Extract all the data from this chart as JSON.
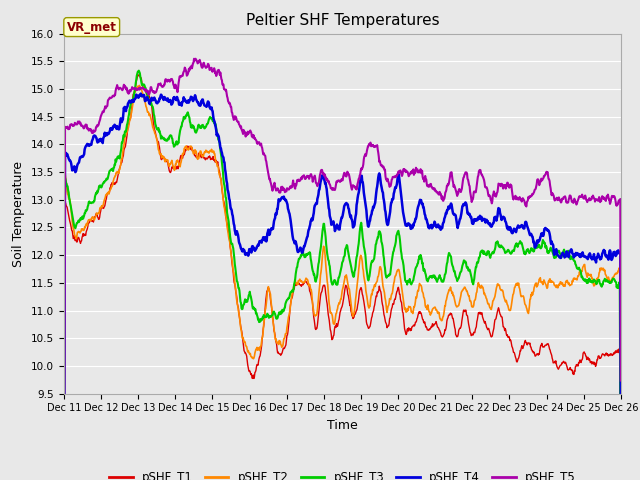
{
  "title": "Peltier SHF Temperatures",
  "xlabel": "Time",
  "ylabel": "Soil Temperature",
  "annotation": "VR_met",
  "ylim": [
    9.5,
    16.0
  ],
  "yticks": [
    9.5,
    10.0,
    10.5,
    11.0,
    11.5,
    12.0,
    12.5,
    13.0,
    13.5,
    14.0,
    14.5,
    15.0,
    15.5,
    16.0
  ],
  "xtick_labels": [
    "Dec 11",
    "Dec 12",
    "Dec 13",
    "Dec 14",
    "Dec 15",
    "Dec 16",
    "Dec 17",
    "Dec 18",
    "Dec 19",
    "Dec 20",
    "Dec 21",
    "Dec 22",
    "Dec 23",
    "Dec 24",
    "Dec 25",
    "Dec 26"
  ],
  "series_colors": {
    "pSHF_T1": "#dd0000",
    "pSHF_T2": "#ff8800",
    "pSHF_T3": "#00cc00",
    "pSHF_T4": "#0000dd",
    "pSHF_T5": "#aa00aa"
  },
  "series_linewidths": {
    "pSHF_T1": 1.0,
    "pSHF_T2": 1.2,
    "pSHF_T3": 1.5,
    "pSHF_T4": 1.8,
    "pSHF_T5": 1.5
  },
  "background_color": "#e8e8e8",
  "plot_background": "#e8e8e8",
  "grid_color": "#ffffff",
  "title_fontsize": 11,
  "axis_label_fontsize": 9,
  "tick_fontsize": 7.5,
  "legend_fontsize": 8.5
}
